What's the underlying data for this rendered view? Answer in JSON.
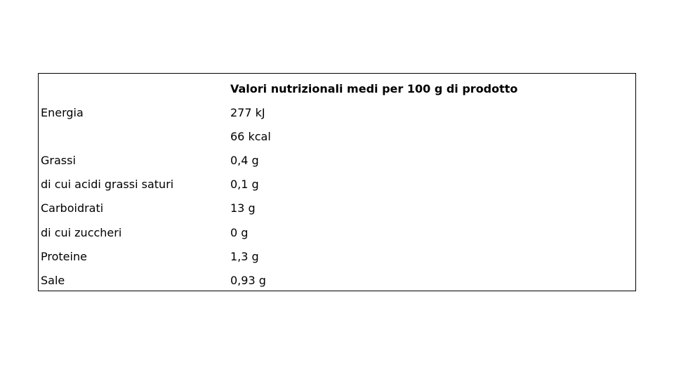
{
  "table": {
    "header": "Valori nutrizionali medi per 100 g di prodotto",
    "rows": [
      {
        "label": "Energia",
        "value": "277 kJ"
      },
      {
        "value": "66 kcal"
      },
      {
        "label": "Grassi",
        "value": "0,4 g"
      },
      {
        "label": "di cui acidi grassi saturi",
        "value": "0,1 g"
      },
      {
        "label": "Carboidrati",
        "value": "13 g"
      },
      {
        "label": "di cui zuccheri",
        "value": "0 g"
      },
      {
        "label": "Proteine",
        "value": "1,3 g"
      },
      {
        "label": "Sale",
        "value": "0,93 g"
      }
    ]
  }
}
